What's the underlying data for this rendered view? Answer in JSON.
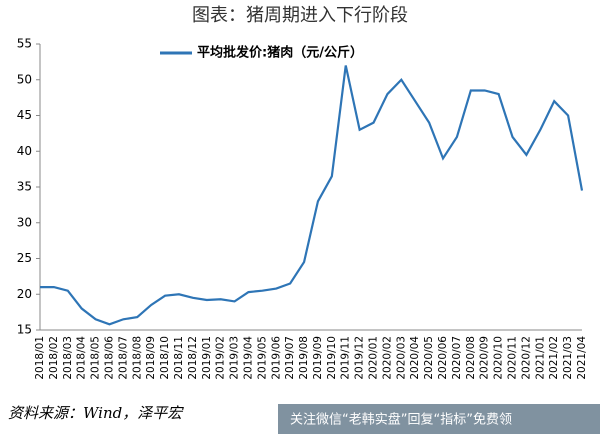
{
  "title": "图表：猪周期进入下行阶段",
  "source": "资料来源：Wind，泽平宏",
  "watermark": "关注微信“老韩实盘”回复“指标”免费领",
  "chart_data": {
    "type": "line",
    "categories": [
      "2018/01",
      "2018/02",
      "2018/03",
      "2018/04",
      "2018/05",
      "2018/06",
      "2018/07",
      "2018/08",
      "2018/09",
      "2018/10",
      "2018/11",
      "2018/12",
      "2019/01",
      "2019/02",
      "2019/03",
      "2019/04",
      "2019/05",
      "2019/06",
      "2019/07",
      "2019/08",
      "2019/09",
      "2019/10",
      "2019/11",
      "2019/12",
      "2020/01",
      "2020/02",
      "2020/03",
      "2020/04",
      "2020/05",
      "2020/06",
      "2020/07",
      "2020/08",
      "2020/09",
      "2020/10",
      "2020/11",
      "2020/12",
      "2021/01",
      "2021/02",
      "2021/03",
      "2021/04"
    ],
    "series": [
      {
        "name": "平均批发价:猪肉（元/公斤）",
        "color": "#2e75b6",
        "values": [
          21,
          21,
          20.5,
          18,
          16.5,
          15.8,
          16.5,
          16.8,
          18.5,
          19.8,
          20,
          19.5,
          19.2,
          19.3,
          19,
          20.3,
          20.5,
          20.8,
          21.5,
          24.5,
          33,
          36.5,
          52,
          43,
          44,
          48,
          50,
          47,
          44,
          39,
          42,
          48.5,
          48.5,
          48,
          42,
          39.5,
          43,
          47,
          45,
          34.5
        ]
      }
    ],
    "ylim": [
      15,
      55
    ],
    "yticks": [
      15,
      20,
      25,
      30,
      35,
      40,
      45,
      50,
      55
    ],
    "legend": "top"
  }
}
